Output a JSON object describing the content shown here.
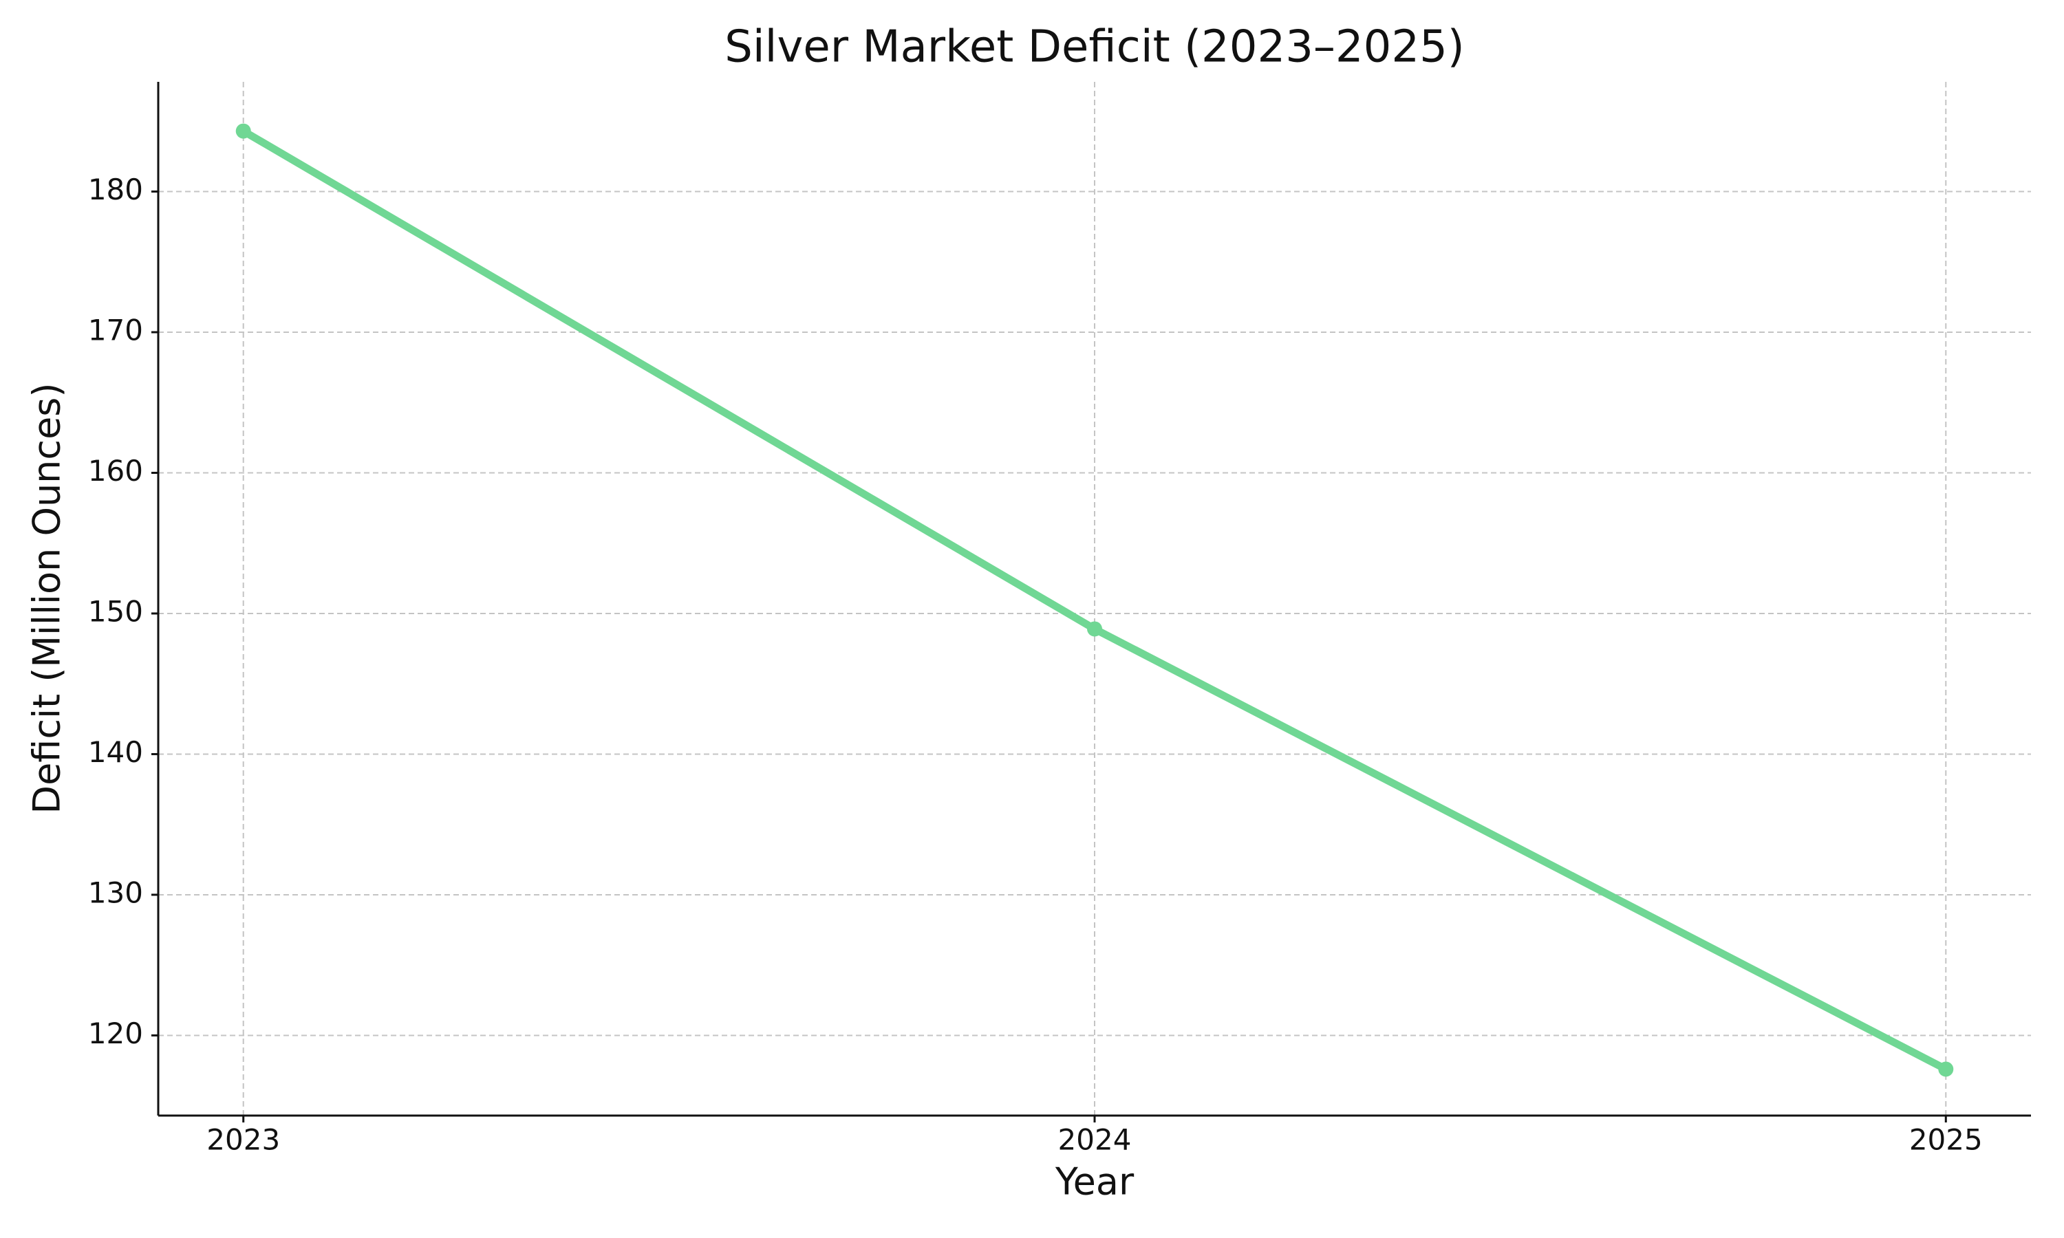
{
  "chart_data": {
    "type": "line",
    "title": "Silver Market Deficit (2023–2025)",
    "x_label": "Year",
    "y_label": "Deficit (Million Ounces)",
    "x": [
      2023,
      2024,
      2025
    ],
    "series": [
      {
        "color": "#70d794",
        "values": [
          184.3,
          148.9,
          117.6
        ]
      }
    ],
    "xlim": [
      2022.9,
      2025.1
    ],
    "xticks": [
      2023,
      2024,
      2025
    ],
    "ylim": [
      114.3,
      187.8
    ],
    "yticks": [
      120,
      130,
      140,
      150,
      160,
      170,
      180
    ],
    "grid": true
  }
}
